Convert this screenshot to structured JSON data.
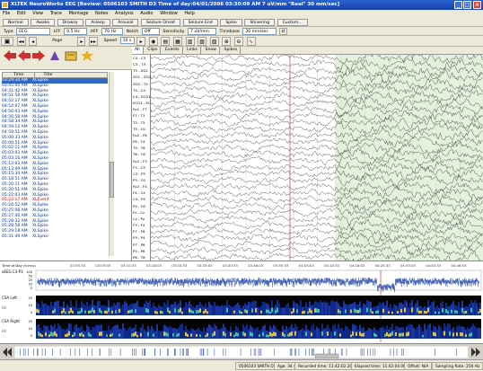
{
  "window": {
    "title": "XLTEK NeuroWorks EEG   [Review:   0506103 SMITH D3   Time of day:04/01/2006 03:30:09 AM   7 uV/mm   \"Real\"   30 mm/sec]"
  },
  "menu": [
    "File",
    "Edit",
    "View",
    "Trace",
    "Montage",
    "Notes",
    "Analysis",
    "Audio",
    "Window",
    "Help"
  ],
  "states": [
    "Normal",
    "Awake",
    "Drowsy",
    "Asleep",
    "Arousal",
    "Seizure Onset",
    "Seizure End",
    "Spike",
    "Shivering",
    "Custom..."
  ],
  "controls": {
    "type_label": "Type",
    "type_value": "EEG",
    "lff_label": "LFF",
    "lff_value": "0.5 Hz",
    "hff_label": "HFF",
    "hff_value": "70 Hz",
    "notch_label": "Notch",
    "notch_value": "Off",
    "sensitivity_label": "Sensitivity",
    "sensitivity_value": "7 uV/mm",
    "timebase_label": "Timebase",
    "timebase_value": "30 mm/sec",
    "page_label": "Page",
    "speed_label": "Speed",
    "speed_value": "10 s"
  },
  "list": {
    "col_time": "Time",
    "col_title": "Title",
    "rows": [
      {
        "time": "03:29:34 AM",
        "title": "XLSpike"
      },
      {
        "time": "03:45:00 AM",
        "title": "XLSpike"
      },
      {
        "time": "04:31:42 AM",
        "title": "XLSpike"
      },
      {
        "time": "04:51:58 AM",
        "title": "XLSpike"
      },
      {
        "time": "04:52:17 AM",
        "title": "XLSpike"
      },
      {
        "time": "04:54:07 AM",
        "title": "XLSpike"
      },
      {
        "time": "04:56:03 AM",
        "title": "XLSpike"
      },
      {
        "time": "04:56:58 AM",
        "title": "XLSpike"
      },
      {
        "time": "04:58:34 AM",
        "title": "XLSpike"
      },
      {
        "time": "04:59:12 AM",
        "title": "XLSpike"
      },
      {
        "time": "04:59:51 AM",
        "title": "XLSpike"
      },
      {
        "time": "05:00:33 AM",
        "title": "XLSpike"
      },
      {
        "time": "05:00:51 AM",
        "title": "XLSpike"
      },
      {
        "time": "05:02:11 AM",
        "title": "XLSpike"
      },
      {
        "time": "05:03:03 AM",
        "title": "XLSpike"
      },
      {
        "time": "05:03:16 AM",
        "title": "XLSpike"
      },
      {
        "time": "05:12:03 AM",
        "title": "XLSpike"
      },
      {
        "time": "05:13:49 AM",
        "title": "XLSpike"
      },
      {
        "time": "05:15:34 AM",
        "title": "XLSpike"
      },
      {
        "time": "05:18:51 AM",
        "title": "XLSpike"
      },
      {
        "time": "05:20:11 AM",
        "title": "XLSpike"
      },
      {
        "time": "05:20:51 AM",
        "title": "XLSpike"
      },
      {
        "time": "05:22:03 AM",
        "title": "XLSpike"
      },
      {
        "time": "05:22:17 AM",
        "title": "XLEvent",
        "red": true
      },
      {
        "time": "05:24:52 AM",
        "title": "XLSpike"
      },
      {
        "time": "05:25:08 AM",
        "title": "XLSpike"
      },
      {
        "time": "05:27:46 AM",
        "title": "XLSpike"
      },
      {
        "time": "05:28:32 AM",
        "title": "XLSpike"
      },
      {
        "time": "05:28:58 AM",
        "title": "XLSpike"
      },
      {
        "time": "05:29:18 AM",
        "title": "XLSpike"
      },
      {
        "time": "05:31:49 AM",
        "title": "XLSpike"
      }
    ]
  },
  "eeg_tabs": [
    "All",
    "Clips",
    "Events",
    "Links",
    "Snow",
    "Spikes"
  ],
  "channels": [
    "C4 - C3",
    "C3 - T3",
    "T3 - ZG1",
    "ZG1 - ZG2",
    "ZG2 - T4",
    "T4 - C4",
    "C4 - ECG1",
    "ECG1 - ECG2",
    "Fp1 - F7",
    "F7 - T3",
    "T3 - T5",
    "T5 - O1",
    "Fp2 - F8",
    "F8 - T4",
    "T4 - T6",
    "T6 - O2",
    "Fp1 - F3",
    "F3 - C3",
    "C3 - P3",
    "P3 - O1",
    "Fp2 - F4",
    "F4 - C4",
    "C4 - P4",
    "P4 - O2",
    "Fz - Cz",
    "Cz - Pz",
    "F3 - F4",
    "F7 - F8",
    "P3 - P4",
    "P7 - P8",
    "P5 - P6",
    "P6 - T8"
  ],
  "time_of_day_label": "Time of Day (h:m:s)",
  "time_ticks": [
    "02:55:33",
    "03:03:03",
    "03:10:33",
    "03:18:03",
    "03:25:33",
    "03:33:03",
    "03:40:33",
    "03:48:03",
    "03:55:33",
    "04:03:03",
    "04:10:33",
    "04:18:03",
    "04:25:33",
    "04:33:03",
    "04:40:33",
    "04:48:03"
  ],
  "trends": {
    "aeeg_label": "aEEG C3-P3",
    "csa_left_label": "CSA Left",
    "csa_right_label": "CSA Right",
    "hz_label": "Hz",
    "aeeg_ticks": [
      "100",
      "50",
      "25",
      "10",
      "5"
    ],
    "csa_ticks": [
      "25",
      "10",
      "0"
    ]
  },
  "status": {
    "patient": "0506103 SMITH D3",
    "age": "Age: 34 y",
    "recorded": "Recorded time: 11:42:02.208",
    "elapsed": "Elapsed time: 11:42:04.008",
    "offset": "Offset: N/A",
    "sampling": "Sampling Rate: 256 Hz"
  }
}
